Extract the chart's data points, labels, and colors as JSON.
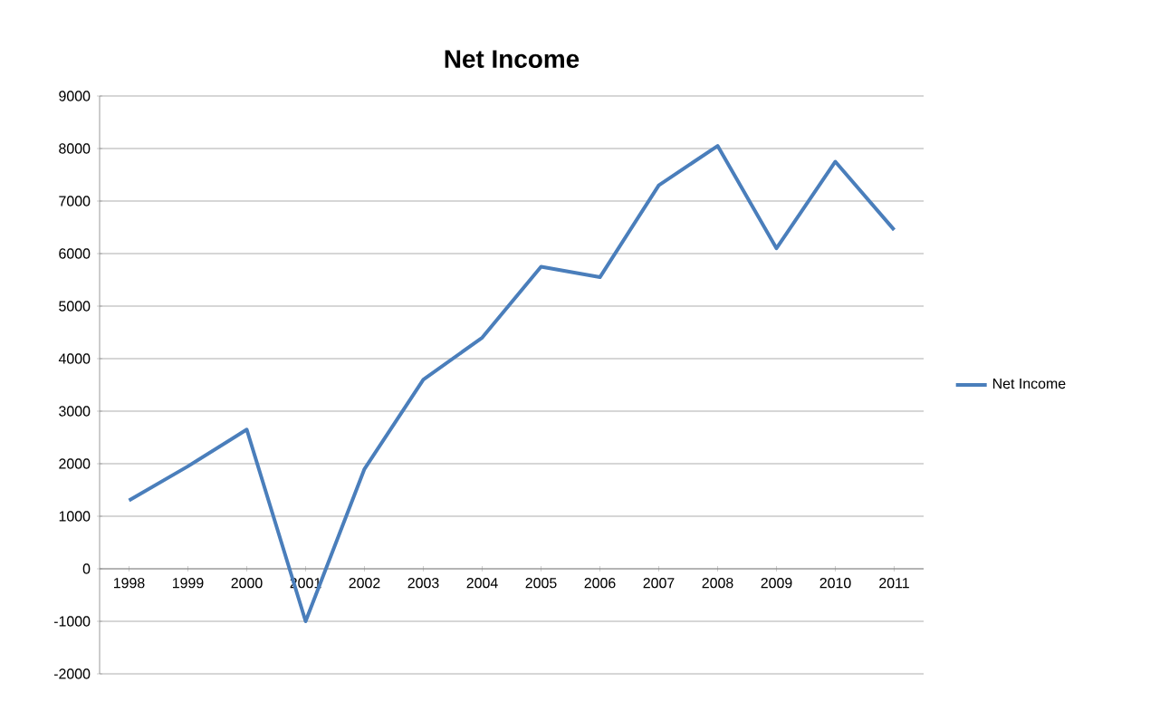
{
  "chart_data": {
    "type": "line",
    "title": "Net Income",
    "categories": [
      "1998",
      "1999",
      "2000",
      "2001",
      "2002",
      "2003",
      "2004",
      "2005",
      "2006",
      "2007",
      "2008",
      "2009",
      "2010",
      "2011"
    ],
    "series": [
      {
        "name": "Net Income",
        "color": "#4a7ebb",
        "values": [
          1300,
          1950,
          2650,
          -1000,
          1900,
          3600,
          4400,
          5750,
          5550,
          7300,
          8050,
          6100,
          7750,
          6450
        ]
      }
    ],
    "ylim": [
      -2000,
      9000
    ],
    "yticks": [
      -2000,
      -1000,
      0,
      1000,
      2000,
      3000,
      4000,
      5000,
      6000,
      7000,
      8000,
      9000
    ],
    "grid": "y",
    "legend": "right",
    "marker": "none",
    "line_style": "solid"
  }
}
